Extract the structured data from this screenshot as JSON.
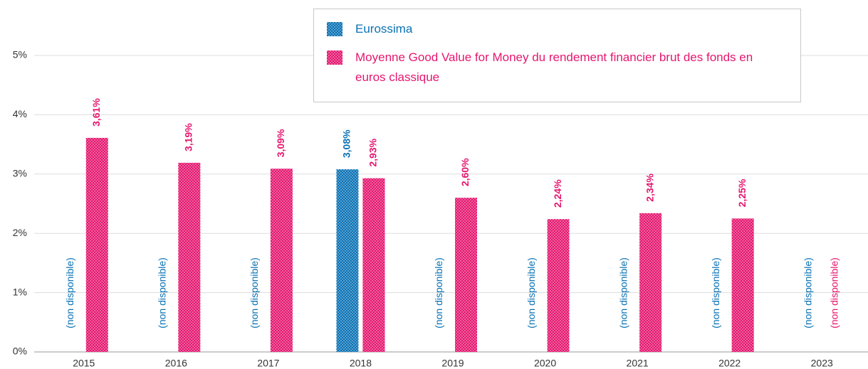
{
  "chart_data": {
    "type": "bar",
    "categories": [
      "2015",
      "2016",
      "2017",
      "2018",
      "2019",
      "2020",
      "2021",
      "2022",
      "2023"
    ],
    "series": [
      {
        "name": "Eurossima",
        "color": "#0a72b5",
        "values": [
          null,
          null,
          null,
          3.08,
          null,
          null,
          null,
          null,
          null
        ],
        "value_labels": [
          "(non disponible)",
          "(non disponible)",
          "(non disponible)",
          "3,08%",
          "(non disponible)",
          "(non disponible)",
          "(non disponible)",
          "(non disponible)",
          "(non disponible)"
        ]
      },
      {
        "name": "Moyenne Good Value for Money du rendement financier brut des fonds en euros classique",
        "color": "#e5176f",
        "values": [
          3.61,
          3.19,
          3.09,
          2.93,
          2.6,
          2.24,
          2.34,
          2.25,
          null
        ],
        "value_labels": [
          "3,61%",
          "3,19%",
          "3,09%",
          "2,93%",
          "2,60%",
          "2,24%",
          "2,34%",
          "2,25%",
          "(non disponible)"
        ]
      }
    ],
    "ylim": [
      0,
      5.8
    ],
    "yticks": [
      {
        "value": 0,
        "label": "0%"
      },
      {
        "value": 1,
        "label": "1%"
      },
      {
        "value": 2,
        "label": "2%"
      },
      {
        "value": 3,
        "label": "3%"
      },
      {
        "value": 4,
        "label": "4%"
      },
      {
        "value": 5,
        "label": "5%"
      }
    ],
    "grid": true,
    "legend": "top"
  }
}
